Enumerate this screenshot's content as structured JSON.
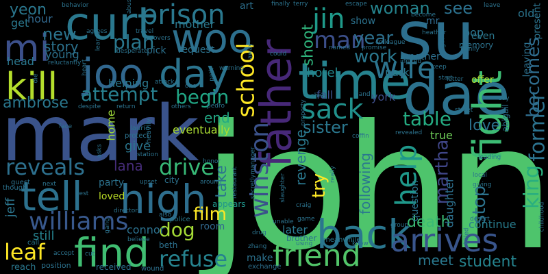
{
  "words": [
    {
      "t": "john",
      "c": "#4ec46c"
    },
    {
      "t": "mark",
      "c": "#3a538b"
    },
    {
      "t": "su",
      "c": "#2d6f8e"
    },
    {
      "t": "dae",
      "c": "#2c728e"
    },
    {
      "t": "curt",
      "c": "#2a788e"
    },
    {
      "t": "woo",
      "c": "#2d708e"
    },
    {
      "t": "time",
      "c": "#26828e"
    },
    {
      "t": "father",
      "c": "#472878"
    },
    {
      "t": "fight",
      "c": "#3dbc74"
    },
    {
      "t": "joo",
      "c": "#31678e"
    },
    {
      "t": "day",
      "c": "#2b748e"
    },
    {
      "t": "mi",
      "c": "#3c508b"
    },
    {
      "t": "tell",
      "c": "#2c718e"
    },
    {
      "t": "high",
      "c": "#2e6e8e"
    },
    {
      "t": "kill",
      "c": "#b4de2c"
    },
    {
      "t": "back",
      "c": "#2a768e"
    },
    {
      "t": "find",
      "c": "#40bd72"
    },
    {
      "t": "friend",
      "c": "#52c569"
    },
    {
      "t": "arrives",
      "c": "#39558c"
    },
    {
      "t": "prison",
      "c": "#2a788e"
    },
    {
      "t": "jin",
      "c": "#1f9a8a"
    },
    {
      "t": "school",
      "c": "#fde725"
    },
    {
      "t": "winston",
      "c": "#3b528b"
    },
    {
      "t": "sack",
      "c": "#21918c"
    },
    {
      "t": "wife",
      "c": "#2c738e"
    },
    {
      "t": "king",
      "c": "#29af7f"
    },
    {
      "t": "former",
      "c": "#2c728e"
    },
    {
      "t": "becomes",
      "c": "#2f6c8e"
    },
    {
      "t": "help",
      "c": "#1f988b"
    },
    {
      "t": "plan",
      "c": "#2a788e"
    },
    {
      "t": "attempt",
      "c": "#277f8e"
    },
    {
      "t": "begin",
      "c": "#21a685"
    },
    {
      "t": "reveals",
      "c": "#2d708e"
    },
    {
      "t": "drive",
      "c": "#38b977"
    },
    {
      "t": "williams",
      "c": "#38588c"
    },
    {
      "t": "leaf",
      "c": "#fde725"
    },
    {
      "t": "refuse",
      "c": "#26828e"
    },
    {
      "t": "film",
      "c": "#fde725"
    },
    {
      "t": "dog",
      "c": "#a5db36"
    },
    {
      "t": "woman",
      "c": "#25848e"
    },
    {
      "t": "see",
      "c": "#2c718e"
    },
    {
      "t": "man",
      "c": "#3c4f8a"
    },
    {
      "t": "year",
      "c": "#2d708e"
    },
    {
      "t": "work",
      "c": "#2a778e"
    },
    {
      "t": "shoot",
      "c": "#2fb47c"
    },
    {
      "t": "table",
      "c": "#25ac82"
    },
    {
      "t": "sister",
      "c": "#2a778e"
    },
    {
      "t": "love",
      "c": "#2c728e"
    },
    {
      "t": "martha",
      "c": "#404688"
    },
    {
      "t": "stop",
      "c": "#2c738e"
    },
    {
      "t": "death",
      "c": "#3bbb75"
    },
    {
      "t": "meet",
      "c": "#2a788e"
    },
    {
      "t": "student",
      "c": "#25838e"
    },
    {
      "t": "ambrose",
      "c": "#2a778e"
    },
    {
      "t": "new",
      "c": "#2b748e"
    },
    {
      "t": "story",
      "c": "#2c728e"
    },
    {
      "t": "yeon",
      "c": "#2a778e"
    },
    {
      "t": "lana",
      "c": "#472d7b"
    },
    {
      "t": "take",
      "c": "#2c738e"
    },
    {
      "t": "end",
      "c": "#22a884"
    },
    {
      "t": "revenge",
      "c": "#2a788e"
    },
    {
      "t": "try",
      "c": "#fde725"
    },
    {
      "t": "eventually",
      "c": "#aadc32"
    },
    {
      "t": "give",
      "c": "#2a768e"
    },
    {
      "t": "jeff",
      "c": "#2b758e"
    },
    {
      "t": "still",
      "c": "#26828e"
    },
    {
      "t": "connor",
      "c": "#2c718e"
    },
    {
      "t": "room",
      "c": "#31688e"
    },
    {
      "t": "later",
      "c": "#2a788e"
    },
    {
      "t": "following",
      "c": "#2a788e"
    },
    {
      "t": "daughter",
      "c": "#2d708e"
    },
    {
      "t": "continue",
      "c": "#287d8e"
    },
    {
      "t": "hotel",
      "c": "#23898e"
    },
    {
      "t": "park",
      "c": "#2a768e"
    },
    {
      "t": "york",
      "c": "#3d4e8a"
    },
    {
      "t": "fall",
      "c": "#3b528b"
    },
    {
      "t": "true",
      "c": "#6ece58"
    },
    {
      "t": "young",
      "c": "#2c728e"
    },
    {
      "t": "head",
      "c": "#2a778e"
    },
    {
      "t": "get",
      "c": "#2a788e"
    },
    {
      "t": "hour",
      "c": "#31688e"
    },
    {
      "t": "mother",
      "c": "#2a788e"
    },
    {
      "t": "art",
      "c": "#2d708e"
    },
    {
      "t": "show",
      "c": "#2c728e"
    },
    {
      "t": "pop",
      "c": "#2b748e"
    },
    {
      "t": "old",
      "c": "#2b748e"
    },
    {
      "t": "mr",
      "c": "#306a8e"
    },
    {
      "t": "helping",
      "c": "#2a778e"
    },
    {
      "t": "home",
      "c": "#9fda3a"
    },
    {
      "t": "party",
      "c": "#2c728e"
    },
    {
      "t": "loved",
      "c": "#bddf26"
    },
    {
      "t": "city",
      "c": "#2c728e"
    },
    {
      "t": "request",
      "c": "#2c738e"
    },
    {
      "t": "pick",
      "c": "#2c718e"
    },
    {
      "t": "offer",
      "c": "#a8db34"
    },
    {
      "t": "another",
      "c": "#2d708e"
    },
    {
      "t": "question",
      "c": "#2c738e"
    },
    {
      "t": "abigail",
      "c": "#2d6f8e"
    },
    {
      "t": "even",
      "c": "#2a788e"
    },
    {
      "t": "memory",
      "c": "#2c728e"
    },
    {
      "t": "leaving",
      "c": "#2d708e"
    },
    {
      "t": "present",
      "c": "#2c738e"
    },
    {
      "t": "appears",
      "c": "#1f958b"
    },
    {
      "t": "police",
      "c": "#2a788e"
    },
    {
      "t": "beth",
      "c": "#2c718e"
    },
    {
      "t": "make",
      "c": "#2c728e"
    },
    {
      "t": "brother",
      "c": "#2c728e"
    },
    {
      "t": "meanwhile",
      "c": "#2a788e"
    },
    {
      "t": "wound",
      "c": "#2d708e"
    },
    {
      "t": "received",
      "c": "#2d708e"
    },
    {
      "t": "exchange",
      "c": "#2d708e"
    },
    {
      "t": "reach",
      "c": "#2a788e"
    },
    {
      "t": "position",
      "c": "#2c728e"
    },
    {
      "t": "call",
      "c": "#2a788e"
    },
    {
      "t": "though",
      "c": "#2c728e"
    },
    {
      "t": "guest",
      "c": "#2c738e"
    },
    {
      "t": "next",
      "c": "#2c738e"
    },
    {
      "t": "test",
      "c": "#2c738e"
    },
    {
      "t": "director",
      "c": "#2c738e"
    },
    {
      "t": "believe",
      "c": "#2c738e"
    },
    {
      "t": "also",
      "c": "#2c738e"
    },
    {
      "t": "upset",
      "c": "#2c738e"
    },
    {
      "t": "around",
      "c": "#2c738e"
    },
    {
      "t": "heavily",
      "c": "#2c738e"
    },
    {
      "t": "laurie",
      "c": "#2c738e"
    },
    {
      "t": "protect",
      "c": "#2c738e"
    },
    {
      "t": "station",
      "c": "#2c738e"
    },
    {
      "t": "secretly",
      "c": "#2c738e"
    },
    {
      "t": "slaughter",
      "c": "#2c738e"
    },
    {
      "t": "craig",
      "c": "#2c738e"
    },
    {
      "t": "really",
      "c": "#2c738e"
    },
    {
      "t": "coffin",
      "c": "#2c738e"
    },
    {
      "t": "revealed",
      "c": "#2c738e"
    },
    {
      "t": "giving",
      "c": "#2c738e"
    },
    {
      "t": "local",
      "c": "#2c738e"
    },
    {
      "t": "leading",
      "c": "#2c738e"
    },
    {
      "t": "street",
      "c": "#2c738e"
    },
    {
      "t": "say",
      "c": "#2c738e"
    },
    {
      "t": "childhood",
      "c": "#2c738e"
    },
    {
      "t": "killed",
      "c": "#2c738e"
    },
    {
      "t": "desert",
      "c": "#2c738e"
    },
    {
      "t": "group",
      "c": "#2c738e"
    },
    {
      "t": "know",
      "c": "#2c738e"
    },
    {
      "t": "using",
      "c": "#2c738e"
    },
    {
      "t": "zhang",
      "c": "#2c738e"
    },
    {
      "t": "unable",
      "c": "#2c738e"
    },
    {
      "t": "game",
      "c": "#2c738e"
    },
    {
      "t": "drug",
      "c": "#2c738e"
    },
    {
      "t": "manager",
      "c": "#2c738e"
    },
    {
      "t": "restaurant",
      "c": "#2c738e"
    },
    {
      "t": "honor",
      "c": "#2c738e"
    },
    {
      "t": "others",
      "c": "#2c738e"
    },
    {
      "t": "pedro",
      "c": "#2c738e"
    },
    {
      "t": "return",
      "c": "#2c738e"
    },
    {
      "t": "despite",
      "c": "#2c738e"
    },
    {
      "t": "face",
      "c": "#2c738e"
    },
    {
      "t": "asks",
      "c": "#2c738e"
    },
    {
      "t": "gang",
      "c": "#2c738e"
    },
    {
      "t": "accept",
      "c": "#2c738e"
    },
    {
      "t": "cut",
      "c": "#2c738e"
    },
    {
      "t": "behavior",
      "c": "#2c738e"
    },
    {
      "t": "abuse",
      "c": "#2c738e"
    },
    {
      "t": "recovers",
      "c": "#2c738e"
    },
    {
      "t": "agrees",
      "c": "#2c738e"
    },
    {
      "t": "travel",
      "c": "#2c738e"
    },
    {
      "t": "learns",
      "c": "#2c738e"
    },
    {
      "t": "reluctantly",
      "c": "#2c738e"
    },
    {
      "t": "desperate",
      "c": "#2c738e"
    },
    {
      "t": "heart",
      "c": "#2c738e"
    },
    {
      "t": "warning",
      "c": "#2c738e"
    },
    {
      "t": "away",
      "c": "#2c738e"
    },
    {
      "t": "path",
      "c": "#2c738e"
    },
    {
      "t": "one",
      "c": "#2c738e"
    },
    {
      "t": "attack",
      "c": "#2c738e"
    },
    {
      "t": "die",
      "c": "#2c738e"
    },
    {
      "t": "finally",
      "c": "#2c738e"
    },
    {
      "t": "terry",
      "c": "#2c738e"
    },
    {
      "t": "escape",
      "c": "#2c738e"
    },
    {
      "t": "become",
      "c": "#2c738e"
    },
    {
      "t": "named",
      "c": "#2c738e"
    },
    {
      "t": "colleague",
      "c": "#2c738e"
    },
    {
      "t": "promise",
      "c": "#2c738e"
    },
    {
      "t": "could",
      "c": "#2c738e"
    },
    {
      "t": "injured",
      "c": "#2c738e"
    },
    {
      "t": "keep",
      "c": "#2c738e"
    },
    {
      "t": "start",
      "c": "#2c738e"
    },
    {
      "t": "letter",
      "c": "#2c738e"
    },
    {
      "t": "hand",
      "c": "#2c738e"
    },
    {
      "t": "shen",
      "c": "#2c738e"
    },
    {
      "t": "property",
      "c": "#2c738e"
    },
    {
      "t": "heather",
      "c": "#2c738e"
    },
    {
      "t": "girl",
      "c": "#2c738e"
    },
    {
      "t": "family",
      "c": "#2c738e"
    },
    {
      "t": "leave",
      "c": "#2c738e"
    }
  ]
}
